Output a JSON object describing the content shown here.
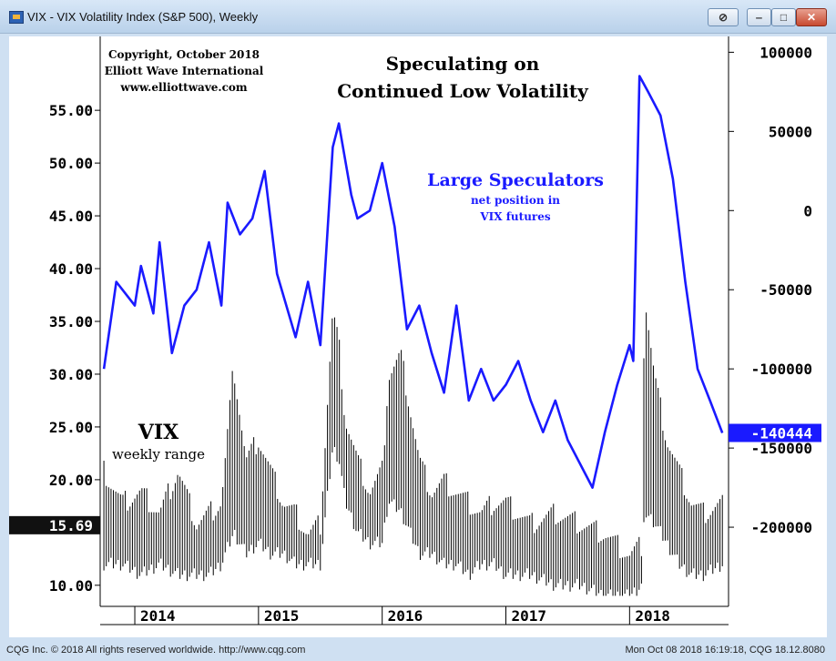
{
  "window": {
    "title": "VIX - VIX Volatility Index (S&P 500), Weekly",
    "icon": "chart-app-icon",
    "buttons": [
      "pin-icon",
      "minimize-icon",
      "maximize-icon",
      "close-icon"
    ]
  },
  "footer": {
    "left": "CQG Inc. © 2018 All rights reserved worldwide. http://www.cqg.com",
    "right": "Mon Oct 08 2018 16:19:18, CQG 18.12.8080"
  },
  "chart_data": {
    "type": "line",
    "title": "Speculating on Continued Low Volatility",
    "title_lines": [
      "Speculating on",
      "Continued Low Volatility"
    ],
    "copyright": [
      "Copyright, October 2018",
      "Elliott Wave International",
      "www.elliottwave.com"
    ],
    "colors": {
      "speculators": "#1a1aff",
      "vix": "#000000",
      "background": "#ffffff"
    },
    "x_labels": [
      "2014",
      "2015",
      "2016",
      "2017",
      "2018"
    ],
    "left_axis": {
      "ticks": [
        "55.00",
        "50.00",
        "45.00",
        "40.00",
        "35.00",
        "30.00",
        "25.00",
        "20.00",
        "15.69",
        "10.00"
      ],
      "range": [
        8,
        62
      ],
      "last_value": "15.69"
    },
    "right_axis": {
      "ticks": [
        "100000",
        "50000",
        "0",
        "-50000",
        "-100000",
        "-150000",
        "-200000"
      ],
      "range": [
        -250000,
        110000
      ],
      "last_value": "-140444"
    },
    "series": [
      {
        "name": "Large Speculators",
        "label_lines": [
          "Large Speculators",
          "net position in",
          "VIX futures"
        ],
        "axis": "right",
        "dates": [
          "2013.75",
          "2013.85",
          "2014.0",
          "2014.05",
          "2014.15",
          "2014.2",
          "2014.3",
          "2014.4",
          "2014.5",
          "2014.6",
          "2014.7",
          "2014.75",
          "2014.85",
          "2014.95",
          "2015.05",
          "2015.15",
          "2015.3",
          "2015.4",
          "2015.5",
          "2015.6",
          "2015.65",
          "2015.75",
          "2015.8",
          "2015.9",
          "2016.0",
          "2016.1",
          "2016.2",
          "2016.3",
          "2016.4",
          "2016.5",
          "2016.6",
          "2016.7",
          "2016.8",
          "2016.9",
          "2017.0",
          "2017.1",
          "2017.2",
          "2017.3",
          "2017.4",
          "2017.5",
          "2017.6",
          "2017.7",
          "2017.8",
          "2017.9",
          "2018.0",
          "2018.03",
          "2018.08",
          "2018.15",
          "2018.25",
          "2018.35",
          "2018.45",
          "2018.55",
          "2018.65",
          "2018.75"
        ],
        "values": [
          -100000,
          -45000,
          -60000,
          -35000,
          -65000,
          -20000,
          -90000,
          -60000,
          -50000,
          -20000,
          -60000,
          5000,
          -15000,
          -5000,
          25000,
          -40000,
          -80000,
          -45000,
          -85000,
          40000,
          55000,
          10000,
          -5000,
          0,
          30000,
          -10000,
          -75000,
          -60000,
          -90000,
          -115000,
          -60000,
          -120000,
          -100000,
          -120000,
          -110000,
          -95000,
          -120000,
          -140000,
          -120000,
          -145000,
          -160000,
          -175000,
          -140000,
          -110000,
          -85000,
          -95000,
          85000,
          75000,
          60000,
          20000,
          -45000,
          -100000,
          -120000,
          -140444
        ]
      },
      {
        "name": "VIX",
        "label_lines": [
          "VIX",
          "weekly range"
        ],
        "axis": "left",
        "dates": [
          "2013.75",
          "2013.9",
          "2014.05",
          "2014.2",
          "2014.35",
          "2014.5",
          "2014.6",
          "2014.7",
          "2014.8",
          "2014.9",
          "2015.0",
          "2015.1",
          "2015.2",
          "2015.3",
          "2015.4",
          "2015.5",
          "2015.6",
          "2015.65",
          "2015.7",
          "2015.8",
          "2015.9",
          "2016.0",
          "2016.05",
          "2016.15",
          "2016.3",
          "2016.4",
          "2016.5",
          "2016.6",
          "2016.7",
          "2016.8",
          "2016.9",
          "2017.0",
          "2017.2",
          "2017.4",
          "2017.6",
          "2017.8",
          "2018.0",
          "2018.1",
          "2018.12",
          "2018.2",
          "2018.3",
          "2018.4",
          "2018.5",
          "2018.6",
          "2018.75"
        ],
        "lows": [
          12,
          12,
          11,
          12,
          11,
          11,
          11,
          12,
          15,
          13,
          14,
          13,
          13,
          12,
          12,
          12,
          23,
          22,
          18,
          15,
          14,
          14,
          18,
          17,
          13,
          13,
          12,
          12,
          11,
          12,
          12,
          11,
          11,
          10,
          10,
          9,
          9,
          10,
          17,
          16,
          14,
          12,
          11,
          11,
          12
        ],
        "highs": [
          21,
          18,
          19,
          17,
          21,
          16,
          17,
          18,
          31,
          22,
          24,
          21,
          18,
          17,
          15,
          16,
          36,
          33,
          26,
          22,
          19,
          21,
          30,
          32,
          22,
          19,
          20,
          19,
          18,
          17,
          18,
          18,
          16,
          17,
          16,
          15,
          13,
          14,
          38,
          30,
          24,
          21,
          18,
          17,
          18
        ]
      }
    ]
  }
}
